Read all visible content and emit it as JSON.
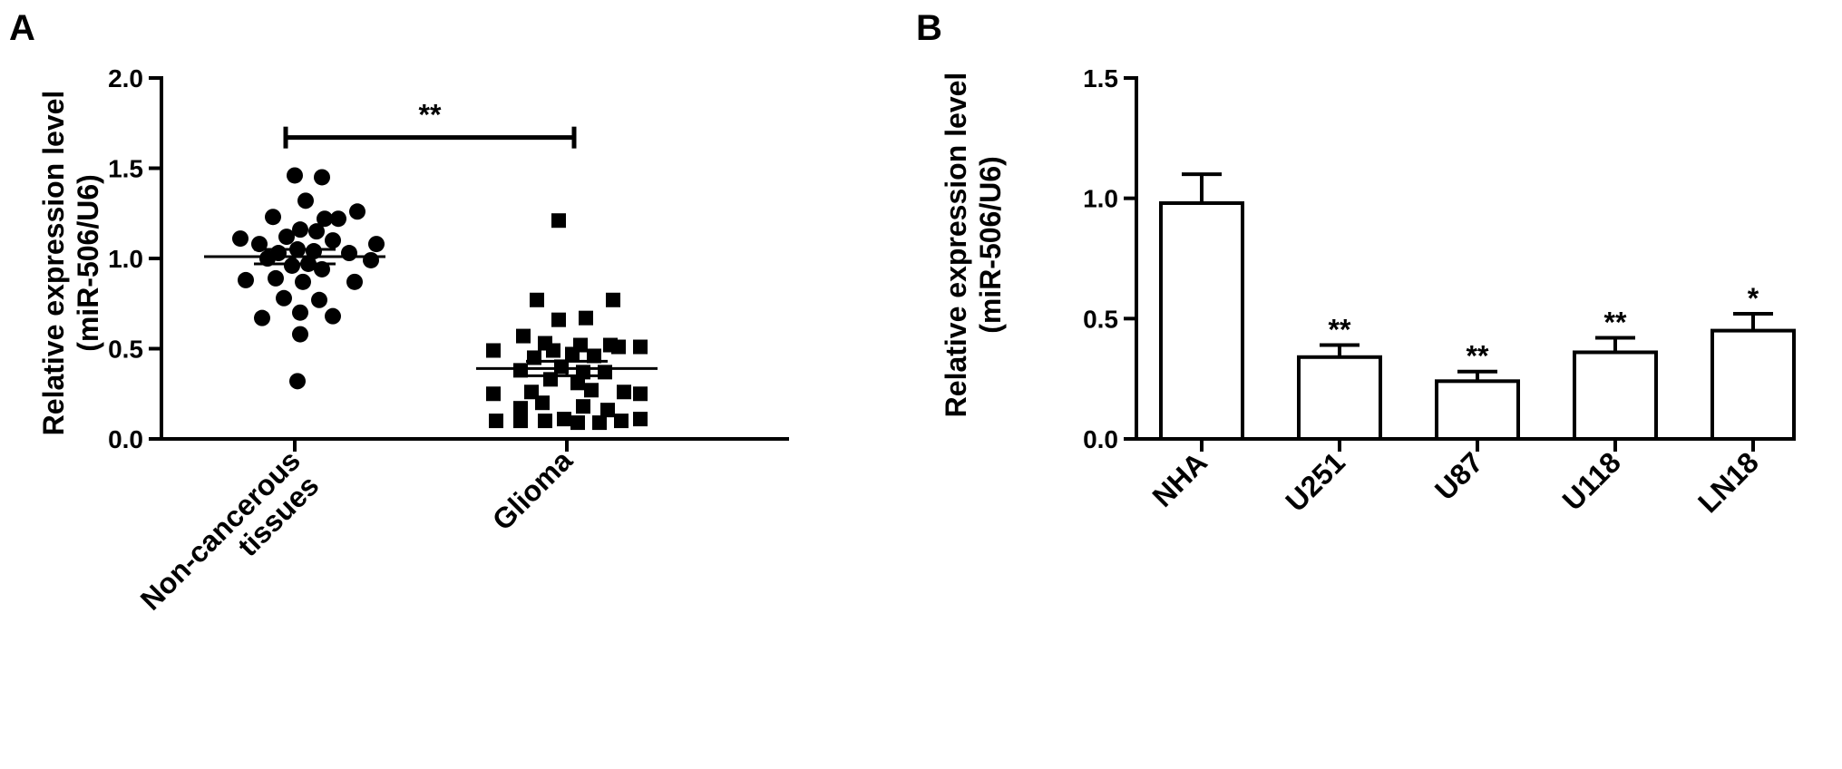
{
  "panels": {
    "a_label": "A",
    "b_label": "B"
  },
  "chart_data": [
    {
      "type": "scatter",
      "panel": "A",
      "ylabel_line1": "Relative expression level",
      "ylabel_line2": "(miR-506/U6)",
      "ylim": [
        0,
        2.0
      ],
      "yticks": [
        "0.0",
        "0.5",
        "1.0",
        "1.5",
        "2.0"
      ],
      "categories": [
        {
          "label_line1": "Non-cancerous",
          "label_line2": "tissues"
        },
        {
          "label_line1": "Glioma",
          "label_line2": ""
        }
      ],
      "groups": [
        {
          "marker": "circle",
          "mean": 1.01,
          "sem": 0.04,
          "points": [
            {
              "x": 0,
              "y": 1.46
            },
            {
              "x": 0.1,
              "y": 1.45
            },
            {
              "x": 0.04,
              "y": 1.32
            },
            {
              "x": -0.08,
              "y": 1.23
            },
            {
              "x": 0.23,
              "y": 1.26
            },
            {
              "x": 0.11,
              "y": 1.22
            },
            {
              "x": 0.16,
              "y": 1.22
            },
            {
              "x": -0.2,
              "y": 1.11
            },
            {
              "x": 0.02,
              "y": 1.16
            },
            {
              "x": 0.08,
              "y": 1.15
            },
            {
              "x": -0.03,
              "y": 1.12
            },
            {
              "x": -0.13,
              "y": 1.08
            },
            {
              "x": 0.3,
              "y": 1.08
            },
            {
              "x": 0.14,
              "y": 1.1
            },
            {
              "x": -0.06,
              "y": 1.03
            },
            {
              "x": 0.01,
              "y": 1.05
            },
            {
              "x": 0.07,
              "y": 1.04
            },
            {
              "x": 0.2,
              "y": 1.03
            },
            {
              "x": 0.28,
              "y": 0.99
            },
            {
              "x": -0.1,
              "y": 1.0
            },
            {
              "x": -0.01,
              "y": 0.96
            },
            {
              "x": 0.05,
              "y": 0.97
            },
            {
              "x": 0.1,
              "y": 0.94
            },
            {
              "x": -0.18,
              "y": 0.88
            },
            {
              "x": 0.22,
              "y": 0.87
            },
            {
              "x": -0.07,
              "y": 0.89
            },
            {
              "x": 0.03,
              "y": 0.87
            },
            {
              "x": -0.04,
              "y": 0.78
            },
            {
              "x": 0.09,
              "y": 0.77
            },
            {
              "x": 0.02,
              "y": 0.7
            },
            {
              "x": -0.12,
              "y": 0.67
            },
            {
              "x": 0.14,
              "y": 0.68
            },
            {
              "x": 0.02,
              "y": 0.58
            },
            {
              "x": 0.01,
              "y": 0.32
            }
          ]
        },
        {
          "marker": "square",
          "mean": 0.39,
          "sem": 0.04,
          "points": [
            {
              "x": -0.03,
              "y": 1.21
            },
            {
              "x": -0.11,
              "y": 0.77
            },
            {
              "x": 0.17,
              "y": 0.77
            },
            {
              "x": -0.03,
              "y": 0.66
            },
            {
              "x": 0.07,
              "y": 0.67
            },
            {
              "x": -0.16,
              "y": 0.57
            },
            {
              "x": -0.08,
              "y": 0.53
            },
            {
              "x": 0.05,
              "y": 0.52
            },
            {
              "x": 0.16,
              "y": 0.52
            },
            {
              "x": -0.05,
              "y": 0.49
            },
            {
              "x": 0.19,
              "y": 0.51
            },
            {
              "x": -0.27,
              "y": 0.49
            },
            {
              "x": 0.27,
              "y": 0.51
            },
            {
              "x": -0.12,
              "y": 0.45
            },
            {
              "x": 0.02,
              "y": 0.47
            },
            {
              "x": 0.1,
              "y": 0.46
            },
            {
              "x": -0.02,
              "y": 0.4
            },
            {
              "x": -0.17,
              "y": 0.38
            },
            {
              "x": 0.06,
              "y": 0.37
            },
            {
              "x": 0.14,
              "y": 0.37
            },
            {
              "x": -0.06,
              "y": 0.33
            },
            {
              "x": 0.04,
              "y": 0.31
            },
            {
              "x": -0.13,
              "y": 0.26
            },
            {
              "x": 0.09,
              "y": 0.27
            },
            {
              "x": 0.21,
              "y": 0.26
            },
            {
              "x": -0.27,
              "y": 0.25
            },
            {
              "x": 0.27,
              "y": 0.25
            },
            {
              "x": -0.09,
              "y": 0.2
            },
            {
              "x": 0.06,
              "y": 0.18
            },
            {
              "x": -0.17,
              "y": 0.17
            },
            {
              "x": 0.15,
              "y": 0.16
            },
            {
              "x": -0.01,
              "y": 0.11
            },
            {
              "x": -0.26,
              "y": 0.1
            },
            {
              "x": -0.17,
              "y": 0.1
            },
            {
              "x": -0.08,
              "y": 0.1
            },
            {
              "x": 0.04,
              "y": 0.09
            },
            {
              "x": 0.12,
              "y": 0.09
            },
            {
              "x": 0.2,
              "y": 0.1
            },
            {
              "x": 0.27,
              "y": 0.11
            }
          ]
        }
      ],
      "significance": {
        "from": 0,
        "to": 1,
        "y": 1.67,
        "label": "**"
      }
    },
    {
      "type": "bar",
      "panel": "B",
      "ylabel_line1": "Relative expression level",
      "ylabel_line2": "(miR-506/U6)",
      "ylim": [
        0,
        1.5
      ],
      "yticks": [
        "0.0",
        "0.5",
        "1.0",
        "1.5"
      ],
      "categories": [
        "NHA",
        "U251",
        "U87",
        "U118",
        "LN18"
      ],
      "values": [
        0.98,
        0.34,
        0.24,
        0.36,
        0.45
      ],
      "errors": [
        0.12,
        0.05,
        0.04,
        0.06,
        0.07
      ],
      "annotations": [
        "",
        "**",
        "**",
        "**",
        "*"
      ]
    }
  ]
}
